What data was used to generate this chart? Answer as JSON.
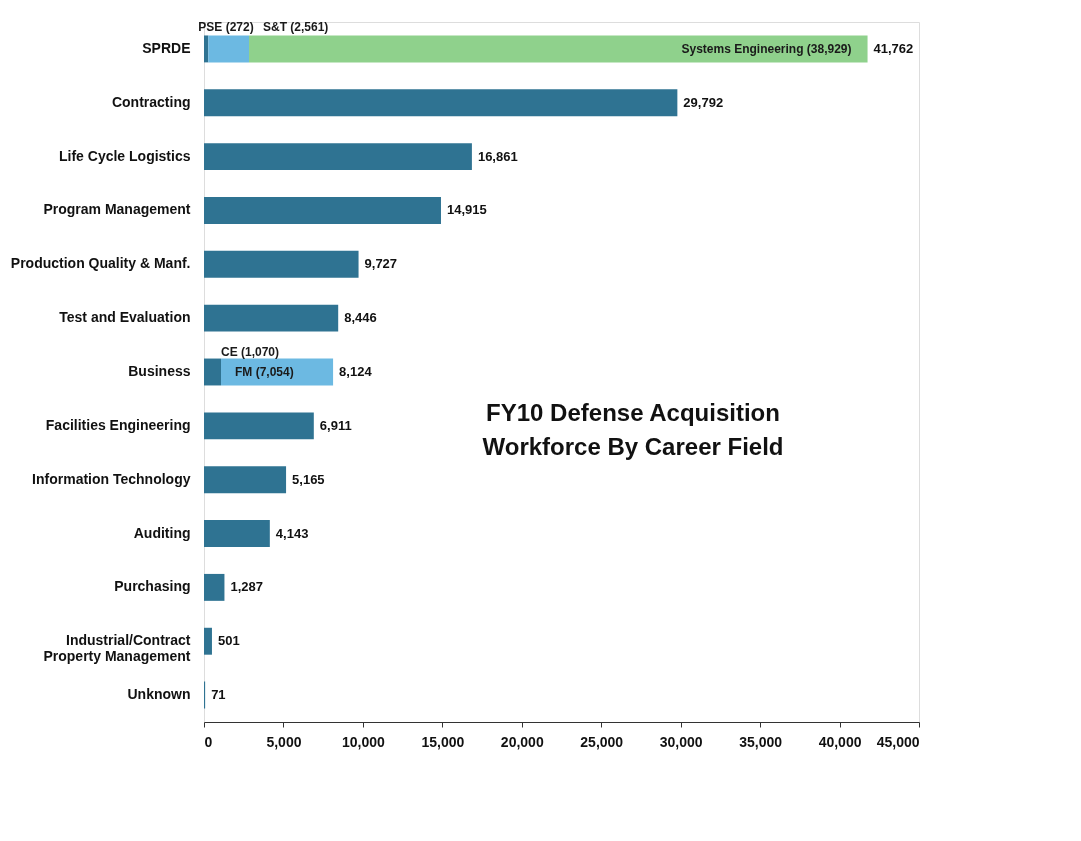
{
  "chart_data": {
    "type": "bar",
    "orientation": "horizontal",
    "stacked": true,
    "title": "FY10 Defense Acquisition Workforce By Career Field",
    "categories": [
      "SPRDE",
      "Contracting",
      "Life Cycle Logistics",
      "Program Management",
      "Production Quality & Manf.",
      "Test and Evaluation",
      "Business",
      "Facilities Engineering",
      "Information Technology",
      "Auditing",
      "Purchasing",
      "Industrial/Contract\nProperty Management",
      "Unknown"
    ],
    "series": [
      {
        "color": "#2f7392",
        "values": [
          272,
          29792,
          16861,
          14915,
          9727,
          8446,
          1070,
          6911,
          5165,
          4143,
          1287,
          501,
          71
        ]
      },
      {
        "color": "#6cb9e2",
        "values": [
          2561,
          null,
          null,
          null,
          null,
          null,
          7054,
          null,
          null,
          null,
          null,
          null,
          null
        ]
      },
      {
        "color": "#8fd18c",
        "values": [
          38929,
          null,
          null,
          null,
          null,
          null,
          null,
          null,
          null,
          null,
          null,
          null,
          null
        ]
      }
    ],
    "totals": [
      "41,762",
      "29,792",
      "16,861",
      "14,915",
      "9,727",
      "8,446",
      "8,124",
      "6,911",
      "5,165",
      "4,143",
      "1,287",
      "501",
      "71"
    ],
    "annotations": [
      {
        "text": "PSE (272)",
        "x": 272,
        "y": "SPRDE"
      },
      {
        "text": "S&T (2,561)",
        "x": 2833,
        "y": "SPRDE"
      },
      {
        "text": "Systems Engineering (38,929)",
        "x": 41762,
        "y": "SPRDE"
      },
      {
        "text": "CE (1,070)",
        "x": 1070,
        "y": "Business"
      },
      {
        "text": "FM (7,054)",
        "x": 1070,
        "y": "Business"
      }
    ],
    "xlim": [
      0,
      45000
    ],
    "xticks": [
      0,
      {
        "value": 5000,
        "label": "5,000"
      },
      {
        "value": 10000,
        "label": "10,000"
      },
      {
        "value": 15000,
        "label": "15,000"
      },
      {
        "value": 20000,
        "label": "20,000"
      },
      {
        "value": 25000,
        "label": "25,000"
      },
      {
        "value": 30000,
        "label": "30,000"
      },
      {
        "value": 35000,
        "label": "35,000"
      },
      {
        "value": 40000,
        "label": "40,000"
      },
      {
        "value": 45000,
        "label": "45,000"
      }
    ],
    "grid": false
  }
}
